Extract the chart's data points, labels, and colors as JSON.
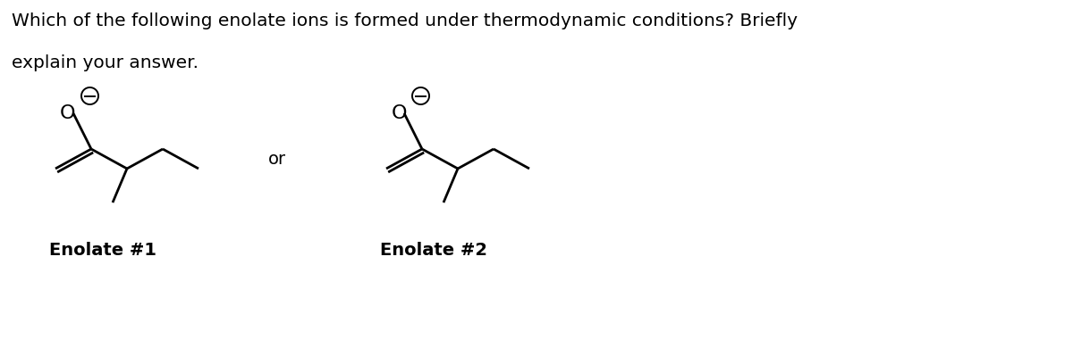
{
  "title_line1": "Which of the following enolate ions is formed under thermodynamic conditions? Briefly",
  "title_line2": "explain your answer.",
  "label1": "Enolate #1",
  "label2": "Enolate #2",
  "or_text": "or",
  "bg_color": "#ffffff",
  "text_color": "#000000",
  "line_color": "#000000",
  "title_fontsize": 14.5,
  "label_fontsize": 14,
  "or_fontsize": 14,
  "o_fontsize": 16,
  "lw": 2.0
}
